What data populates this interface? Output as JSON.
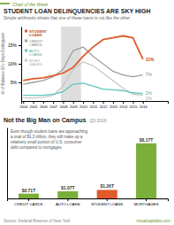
{
  "chart_data": [
    {
      "type": "line",
      "title": "STUDENT LOAN DELINQUENCIES ARE SKY HIGH",
      "subtitle": "Simple arithmetic shows that one of these loans is not like the other",
      "annotations": [
        "Chart of the Week"
      ],
      "ylabel": "% of Balance 90+ Days Delinquent",
      "x": [
        2004,
        2005,
        2006,
        2007,
        2008,
        2009,
        2010,
        2011,
        2012,
        2013,
        2014,
        2015,
        2016
      ],
      "series": [
        {
          "name": "MORT-\nGAGES",
          "color": "#c8c8c8",
          "values": [
            0.8,
            0.8,
            1.0,
            1.5,
            4.0,
            8.5,
            10.5,
            9.5,
            7.5,
            5.5,
            3.5,
            1.8,
            1.5
          ],
          "value_labels": [
            null,
            null,
            null,
            null,
            null,
            null,
            null,
            null,
            null,
            null,
            null,
            null,
            "2%"
          ]
        },
        {
          "name": "AUTO\nLOANS",
          "color": "#5bc8c0",
          "values": [
            1.5,
            1.5,
            1.5,
            1.8,
            2.5,
            4.5,
            4.8,
            4.0,
            3.2,
            3.0,
            2.8,
            2.2,
            2.0
          ],
          "value_labels": [
            null,
            null,
            null,
            null,
            null,
            null,
            null,
            null,
            null,
            null,
            null,
            null,
            "2%"
          ]
        },
        {
          "name": "CREDIT\nCARDS",
          "color": "#9e9e9e",
          "values": [
            4.5,
            5.0,
            5.5,
            6.5,
            8.5,
            13.5,
            14.5,
            12.0,
            10.0,
            8.0,
            7.0,
            6.5,
            7.0
          ],
          "value_labels": [
            null,
            null,
            null,
            null,
            null,
            null,
            null,
            null,
            null,
            null,
            null,
            null,
            "7%"
          ]
        },
        {
          "name": "STUDENT\nLOANS",
          "color": "#e05a2b",
          "values": [
            5.5,
            6.0,
            6.2,
            6.8,
            7.5,
            9.0,
            12.0,
            14.5,
            16.5,
            17.0,
            17.5,
            17.0,
            11.2
          ],
          "value_labels": [
            null,
            null,
            null,
            null,
            null,
            null,
            null,
            null,
            null,
            null,
            null,
            null,
            "11%"
          ]
        }
      ],
      "recession": [
        2007.8,
        2009.8
      ],
      "xlim": [
        2003.8,
        2018.5
      ],
      "xticks": [
        2004,
        2005,
        2006,
        2007,
        2008,
        2009,
        2010,
        2011,
        2012,
        2013,
        2014,
        2015,
        2016
      ],
      "ylim": [
        0,
        20
      ],
      "yticks": [
        {
          "value": 5,
          "label": "5%"
        },
        {
          "value": 10,
          "label": "10%"
        },
        {
          "value": 15,
          "label": "15%"
        }
      ]
    },
    {
      "type": "bar",
      "title": "Not the Big Man on Campus",
      "subtitle": "Q3 2016",
      "annotations": [
        "Even though student loans are approaching\na total of $1.3 trillion, they still make up a\nrelatively small portion of U.S. consumer\ndebt compared to mortgages.",
        "Source: Federal Reserve of New York",
        "visualcapitalist.com"
      ],
      "categories": [
        "CREDIT CARDS",
        "AUTO LOANS",
        "STUDENT LOANS",
        "MORTGAGES"
      ],
      "values": [
        0.71,
        1.07,
        1.26,
        8.17
      ],
      "value_labels": [
        "$0.71T",
        "$1.07T",
        "$1.26T",
        "$8.17T"
      ],
      "colors": [
        "#7ab03a",
        "#7ab03a",
        "#e05a2b",
        "#7ab03a"
      ],
      "ylim": [
        0,
        10.5
      ],
      "yticks": [],
      "tick_labels": "x"
    }
  ]
}
